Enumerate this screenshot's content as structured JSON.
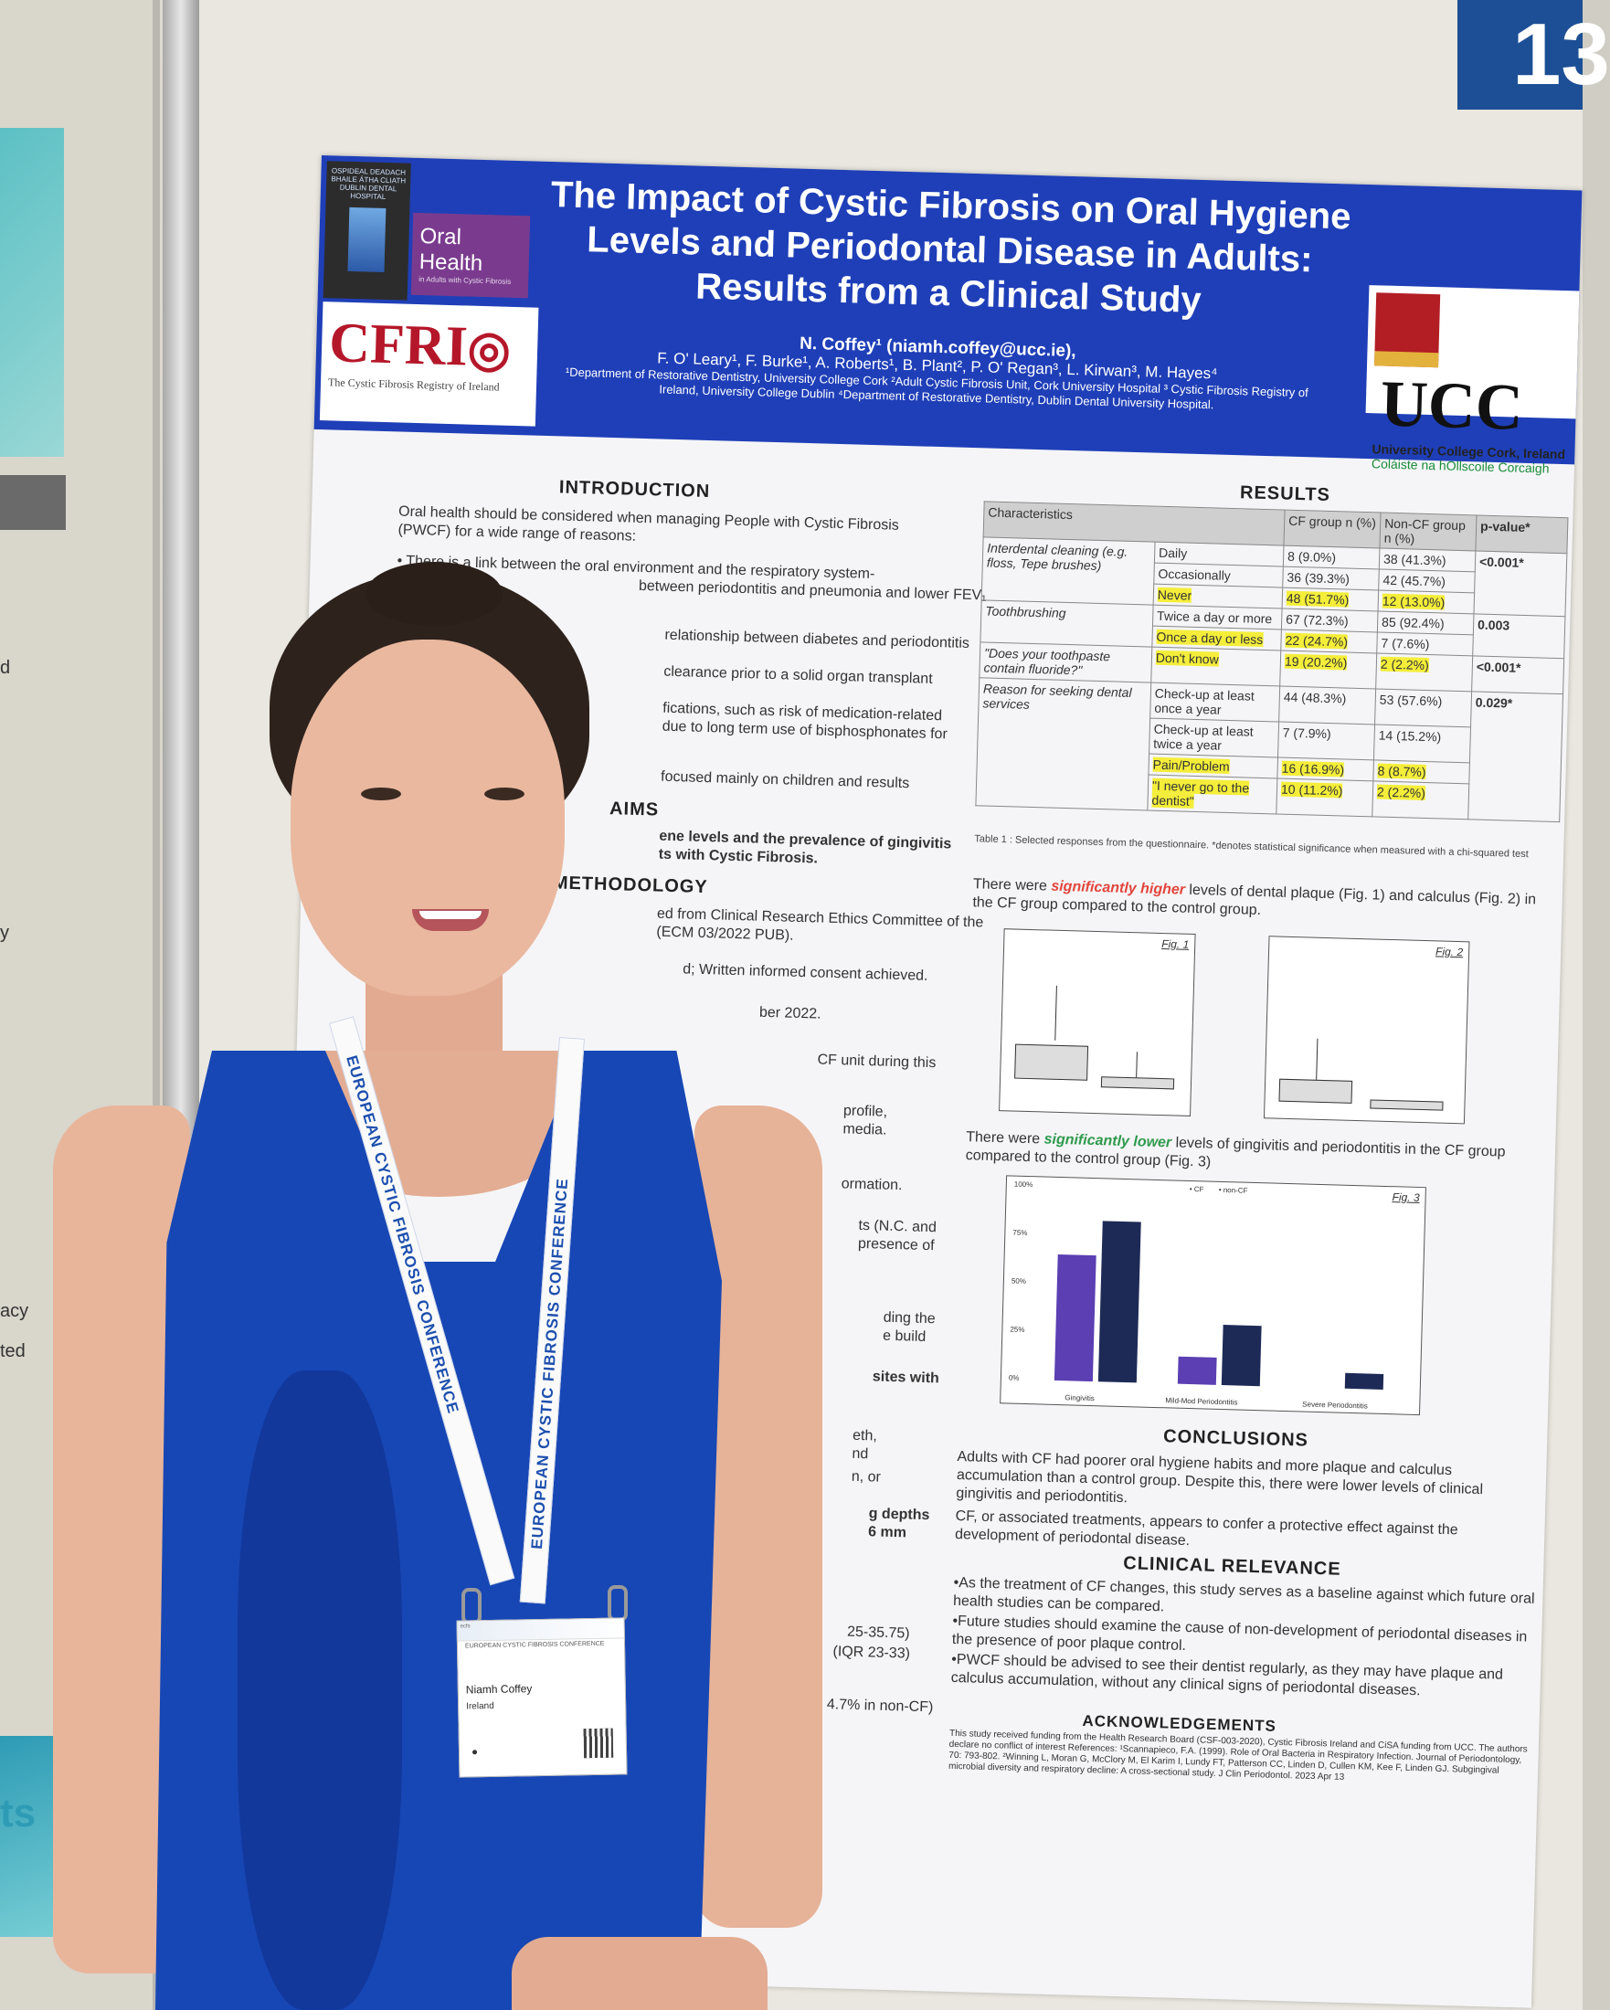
{
  "booth": {
    "number": "13"
  },
  "left_panel": {
    "fragments": [
      "d",
      "y",
      "acy",
      "ted",
      "ts"
    ]
  },
  "poster": {
    "logos": {
      "dental_hospital": "OSPIDEAL DEADACH BHAILE ÁTHA CLIATH DUBLIN DENTAL HOSPITAL",
      "oral_health": "Oral Health",
      "oral_health_sub": "in Adults with Cystic Fibrosis",
      "cfri": "CFRI",
      "cfri_sub": "The Cystic Fibrosis Registry of Ireland",
      "ucc": "UCC",
      "ucc_name": "University College Cork, Ireland",
      "ucc_irish": "Coláiste na hOllscoile Corcaigh"
    },
    "title": "The Impact of Cystic Fibrosis on Oral Hygiene Levels and Periodontal Disease in Adults: Results from a Clinical Study",
    "lead_author": "N. Coffey¹ (niamh.coffey@ucc.ie),",
    "authors": "F. O' Leary¹, F. Burke¹, A. Roberts¹, B. Plant², P. O' Regan³, L. Kirwan³, M. Hayes⁴",
    "affiliations": "¹Department of Restorative Dentistry, University College Cork ²Adult Cystic Fibrosis Unit, Cork University Hospital ³ Cystic Fibrosis Registry of Ireland, University College Dublin ⁴Department of Restorative Dentistry, Dublin Dental University Hospital.",
    "introduction": {
      "heading": "INTRODUCTION",
      "lead": "Oral health should be considered when managing People with Cystic Fibrosis (PWCF) for a wide range of reasons:",
      "bullet_1": "There is a link between the oral environment and the respiratory system-",
      "bullet_1b": "between periodontitis and pneumonia and lower FEV₁",
      "frag_1": "relationship between diabetes and periodontitis",
      "frag_2": "clearance prior to a solid organ transplant",
      "frag_3": "fications, such as risk of medication-related",
      "frag_4": "due to long term use of bisphosphonates for",
      "frag_5": "focused mainly on children and results"
    },
    "aims": {
      "heading": "AIMS",
      "frag_1": "ene levels and the prevalence of gingivitis",
      "frag_2": "ts with Cystic Fibrosis."
    },
    "methodology": {
      "heading": "METHODOLOGY",
      "frag_1": "ed from Clinical Research Ethics Committee of the",
      "frag_2": "(ECM 03/2022 PUB).",
      "frag_3": "d; Written informed consent achieved.",
      "frag_4": "ber 2022.",
      "frag_5": "CF unit during this",
      "frag_6": "profile,",
      "frag_7": "media.",
      "frag_8": "ormation.",
      "frag_9": "ts (N.C. and",
      "frag_10": "presence of",
      "frag_11": "ding the",
      "frag_12": "e build",
      "frag_13": "sites with",
      "frag_14": "eth,",
      "frag_15": "nd",
      "frag_16": "n, or",
      "frag_17": "g depths",
      "frag_18": "6 mm",
      "frag_19": "25-35.75)",
      "frag_20": "(IQR 23-33)",
      "frag_21": "4.7% in non-CF)"
    },
    "results": {
      "heading": "RESULTS",
      "table": {
        "headers": [
          "Characteristics",
          "CF group n (%)",
          "Non-CF group n (%)",
          "p-value*"
        ],
        "groups": {
          "interdental": "Interdental cleaning (e.g. floss, Tepe brushes)",
          "toothbrushing": "Toothbrushing",
          "fluoride": "\"Does your toothpaste contain fluoride?\"",
          "reason": "Reason for seeking dental services"
        },
        "rows": [
          {
            "label": "Daily",
            "cf": "8 (9.0%)",
            "noncf": "38 (41.3%)"
          },
          {
            "label": "Occasionally",
            "cf": "36 (39.3%)",
            "noncf": "42 (45.7%)"
          },
          {
            "label": "Never",
            "cf": "48 (51.7%)",
            "noncf": "12 (13.0%)"
          },
          {
            "label": "Twice a day or more",
            "cf": "67 (72.3%)",
            "noncf": "85 (92.4%)"
          },
          {
            "label": "Once a day or less",
            "cf": "22 (24.7%)",
            "noncf": "7 (7.6%)"
          },
          {
            "label": "Don't know",
            "cf": "19 (20.2%)",
            "noncf": "2 (2.2%)"
          },
          {
            "label": "Check-up at least once a year",
            "cf": "44 (48.3%)",
            "noncf": "53 (57.6%)"
          },
          {
            "label": "Check-up at least twice a year",
            "cf": "7 (7.9%)",
            "noncf": "14 (15.2%)"
          },
          {
            "label": "Pain/Problem",
            "cf": "16 (16.9%)",
            "noncf": "8 (8.7%)"
          },
          {
            "label": "\"I never go to the dentist\"",
            "cf": "10 (11.2%)",
            "noncf": "2 (2.2%)"
          }
        ],
        "pvalues": [
          "<0.001*",
          "0.003",
          "<0.001*",
          "0.029*"
        ]
      },
      "caption": "Table 1 : Selected responses from the questionnaire. *denotes statistical significance when measured with a chi-squared test",
      "plaque_pre": "There were ",
      "plaque_emph": "significantly higher",
      "plaque_post": " levels of dental plaque (Fig. 1) and calculus (Fig. 2) in the CF group compared to the control group.",
      "fig1_label": "Fig. 1",
      "fig2_label": "Fig. 2",
      "gingiva_pre": "There were ",
      "gingiva_emph": "significantly lower",
      "gingiva_post": " levels of gingivitis and periodontitis in the CF group compared to the control group (Fig. 3)",
      "fig3_label": "Fig. 3"
    },
    "fig3": {
      "legend": [
        "• CF",
        "• non-CF"
      ],
      "yticks": [
        "100%",
        "75%",
        "50%",
        "25%",
        "0%"
      ],
      "categories": [
        "Gingivitis",
        "Mild-Mod Periodontitis",
        "Severe Periodontitis"
      ],
      "series": [
        {
          "values": [
            65,
            14,
            0
          ],
          "color": "#5b3fb3"
        },
        {
          "values": [
            83,
            31,
            8
          ],
          "color": "#1e2a56"
        }
      ]
    },
    "conclusions": {
      "heading": "CONCLUSIONS",
      "p1": "Adults with CF had poorer oral hygiene habits and more plaque and calculus accumulation than a control group. Despite this, there were lower levels of clinical gingivitis and periodontitis.",
      "p2": "CF, or associated treatments, appears to confer a protective effect against the development of periodontal disease."
    },
    "clinical_relevance": {
      "heading": "CLINICAL RELEVANCE",
      "b1": "•As the treatment of CF changes, this study serves as a baseline against which future oral health studies can be compared.",
      "b2": "•Future studies should examine the cause of non-development of periodontal diseases in the presence of poor plaque control.",
      "b3": "•PWCF should be advised to see their dentist regularly, as they may have plaque and calculus accumulation, without any clinical signs of periodontal diseases."
    },
    "acknowledgements": {
      "heading": "ACKNOWLEDGEMENTS",
      "text": "This study received funding from the Health Research Board (CSF-003-2020), Cystic Fibrosis Ireland and CiSA funding from UCC. The authors declare no conflict of interest References: ¹Scannapieco, F.A. (1999). Role of Oral Bacteria in Respiratory Infection. Journal of Periodontology, 70: 793-802. ²Winning L, Moran G, McClory M, El Karim I, Lundy FT, Patterson CC, Linden D, Cullen KM, Kee F, Linden GJ. Subgingival microbial diversity and respiratory decline: A cross-sectional study. J Clin Periodontol. 2023 Apr 13"
    }
  },
  "lanyard": {
    "text": "EUROPEAN CYSTIC FIBROSIS CONFERENCE",
    "logo": "ecfs"
  },
  "badge": {
    "name": "Niamh Coffey",
    "country": "Ireland"
  },
  "colors": {
    "header_blue": "#1f3fb8",
    "dress_blue": "#1747b5",
    "highlight_yellow": "#f4ee3a",
    "sig_higher": "#e2453c",
    "sig_lower": "#2f9a4c",
    "cf_bar": "#5b3fb3",
    "noncf_bar": "#1e2a56"
  }
}
